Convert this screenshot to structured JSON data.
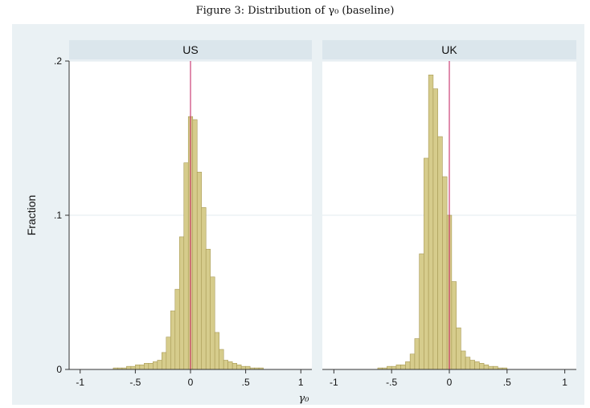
{
  "title": "Figure 3: Distribution of γ₀ (baseline)",
  "chart_data": {
    "type": "bar",
    "ylabel": "Fraction",
    "xlabel": "γ₀",
    "xlim": [
      -1.1,
      1.1
    ],
    "ylim": [
      0,
      0.2
    ],
    "x_ticks": [
      -1,
      -0.5,
      0,
      0.5,
      1
    ],
    "x_tick_labels": [
      "-1",
      "-.5",
      "0",
      ".5",
      "1"
    ],
    "y_ticks": [
      0,
      0.1,
      0.2
    ],
    "y_tick_labels": [
      "0",
      ".1",
      ".2"
    ],
    "bin_width": 0.04,
    "colors": {
      "bar_fill": "#d6cc8c",
      "bar_stroke": "#a89a55",
      "ref_line": "#c2185b",
      "outer_bg": "#eaf1f4",
      "strip_bg": "#dbe6ec",
      "plot_bg": "#ffffff",
      "grid": "#e3ebef"
    },
    "panels": [
      {
        "name": "US",
        "ref_x": 0,
        "bins": [
          {
            "x": -0.68,
            "y": 0.001
          },
          {
            "x": -0.64,
            "y": 0.001
          },
          {
            "x": -0.6,
            "y": 0.001
          },
          {
            "x": -0.56,
            "y": 0.002
          },
          {
            "x": -0.52,
            "y": 0.002
          },
          {
            "x": -0.48,
            "y": 0.003
          },
          {
            "x": -0.44,
            "y": 0.003
          },
          {
            "x": -0.4,
            "y": 0.004
          },
          {
            "x": -0.36,
            "y": 0.004
          },
          {
            "x": -0.32,
            "y": 0.005
          },
          {
            "x": -0.28,
            "y": 0.006
          },
          {
            "x": -0.24,
            "y": 0.011
          },
          {
            "x": -0.2,
            "y": 0.021
          },
          {
            "x": -0.16,
            "y": 0.038
          },
          {
            "x": -0.12,
            "y": 0.052
          },
          {
            "x": -0.08,
            "y": 0.086
          },
          {
            "x": -0.04,
            "y": 0.134
          },
          {
            "x": 0.0,
            "y": 0.164
          },
          {
            "x": 0.04,
            "y": 0.162
          },
          {
            "x": 0.08,
            "y": 0.128
          },
          {
            "x": 0.12,
            "y": 0.105
          },
          {
            "x": 0.16,
            "y": 0.078
          },
          {
            "x": 0.2,
            "y": 0.06
          },
          {
            "x": 0.24,
            "y": 0.024
          },
          {
            "x": 0.28,
            "y": 0.013
          },
          {
            "x": 0.32,
            "y": 0.006
          },
          {
            "x": 0.36,
            "y": 0.005
          },
          {
            "x": 0.4,
            "y": 0.004
          },
          {
            "x": 0.44,
            "y": 0.003
          },
          {
            "x": 0.48,
            "y": 0.002
          },
          {
            "x": 0.52,
            "y": 0.002
          },
          {
            "x": 0.56,
            "y": 0.001
          },
          {
            "x": 0.6,
            "y": 0.001
          },
          {
            "x": 0.64,
            "y": 0.001
          }
        ]
      },
      {
        "name": "UK",
        "ref_x": 0,
        "bins": [
          {
            "x": -0.6,
            "y": 0.001
          },
          {
            "x": -0.56,
            "y": 0.001
          },
          {
            "x": -0.52,
            "y": 0.002
          },
          {
            "x": -0.48,
            "y": 0.002
          },
          {
            "x": -0.44,
            "y": 0.003
          },
          {
            "x": -0.4,
            "y": 0.003
          },
          {
            "x": -0.36,
            "y": 0.005
          },
          {
            "x": -0.32,
            "y": 0.01
          },
          {
            "x": -0.28,
            "y": 0.02
          },
          {
            "x": -0.24,
            "y": 0.075
          },
          {
            "x": -0.2,
            "y": 0.137
          },
          {
            "x": -0.16,
            "y": 0.191
          },
          {
            "x": -0.12,
            "y": 0.182
          },
          {
            "x": -0.08,
            "y": 0.151
          },
          {
            "x": -0.04,
            "y": 0.125
          },
          {
            "x": 0.0,
            "y": 0.1
          },
          {
            "x": 0.04,
            "y": 0.057
          },
          {
            "x": 0.08,
            "y": 0.027
          },
          {
            "x": 0.12,
            "y": 0.012
          },
          {
            "x": 0.16,
            "y": 0.008
          },
          {
            "x": 0.2,
            "y": 0.006
          },
          {
            "x": 0.24,
            "y": 0.005
          },
          {
            "x": 0.28,
            "y": 0.004
          },
          {
            "x": 0.32,
            "y": 0.003
          },
          {
            "x": 0.36,
            "y": 0.002
          },
          {
            "x": 0.4,
            "y": 0.002
          },
          {
            "x": 0.44,
            "y": 0.001
          },
          {
            "x": 0.48,
            "y": 0.001
          }
        ]
      }
    ]
  }
}
